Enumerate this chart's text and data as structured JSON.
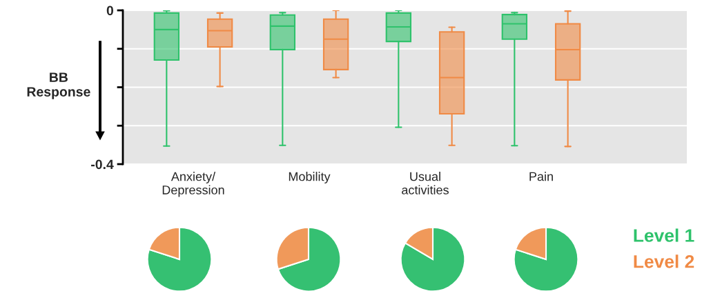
{
  "chart_data": [
    {
      "type": "box",
      "categories": [
        "Anxiety/\nDepression",
        "Mobility",
        "Usual\nactivities",
        "Pain"
      ],
      "ylabel": "BB\nResponse",
      "ylim": [
        -0.4,
        0
      ],
      "yticks": [
        0,
        {
          "value": -0.1,
          "label": null
        },
        {
          "value": -0.2,
          "label": null
        },
        {
          "value": -0.3,
          "label": null
        },
        -0.4
      ],
      "grid": "y",
      "legend": "bottom right",
      "series": [
        {
          "name": "Level 1",
          "color": "#2ec26b",
          "boxes": [
            {
              "low": -0.353,
              "q1": -0.129,
              "median": -0.05,
              "q3": -0.007,
              "high": -0.001
            },
            {
              "low": -0.351,
              "q1": -0.102,
              "median": -0.041,
              "q3": -0.012,
              "high": -0.006
            },
            {
              "low": -0.304,
              "q1": -0.081,
              "median": -0.043,
              "q3": -0.007,
              "high": 0
            },
            {
              "low": -0.352,
              "q1": -0.075,
              "median": -0.035,
              "q3": -0.011,
              "high": -0.006
            }
          ]
        },
        {
          "name": "Level 2",
          "color": "#f08a45",
          "boxes": [
            {
              "low": -0.198,
              "q1": -0.095,
              "median": -0.053,
              "q3": -0.023,
              "high": -0.007
            },
            {
              "low": -0.175,
              "q1": -0.154,
              "median": -0.075,
              "q3": -0.023,
              "high": 0
            },
            {
              "low": -0.351,
              "q1": -0.269,
              "median": -0.175,
              "q3": -0.056,
              "high": -0.044
            },
            {
              "low": -0.354,
              "q1": -0.181,
              "median": -0.102,
              "q3": -0.035,
              "high": -0.002
            }
          ]
        }
      ]
    },
    {
      "type": "pie",
      "categories": [
        null,
        null
      ],
      "values": [
        80,
        20
      ],
      "colors": [
        "#35c072",
        "#f0995a"
      ]
    },
    {
      "type": "pie",
      "categories": [
        null,
        null
      ],
      "values": [
        70,
        30
      ],
      "colors": [
        "#35c072",
        "#f0995a"
      ]
    },
    {
      "type": "pie",
      "categories": [
        null,
        null
      ],
      "values": [
        83.5,
        16.5
      ],
      "colors": [
        "#35c072",
        "#f0995a"
      ]
    },
    {
      "type": "pie",
      "categories": [
        null,
        null
      ],
      "values": [
        80,
        20
      ],
      "colors": [
        "#35c072",
        "#f0995a"
      ]
    }
  ]
}
